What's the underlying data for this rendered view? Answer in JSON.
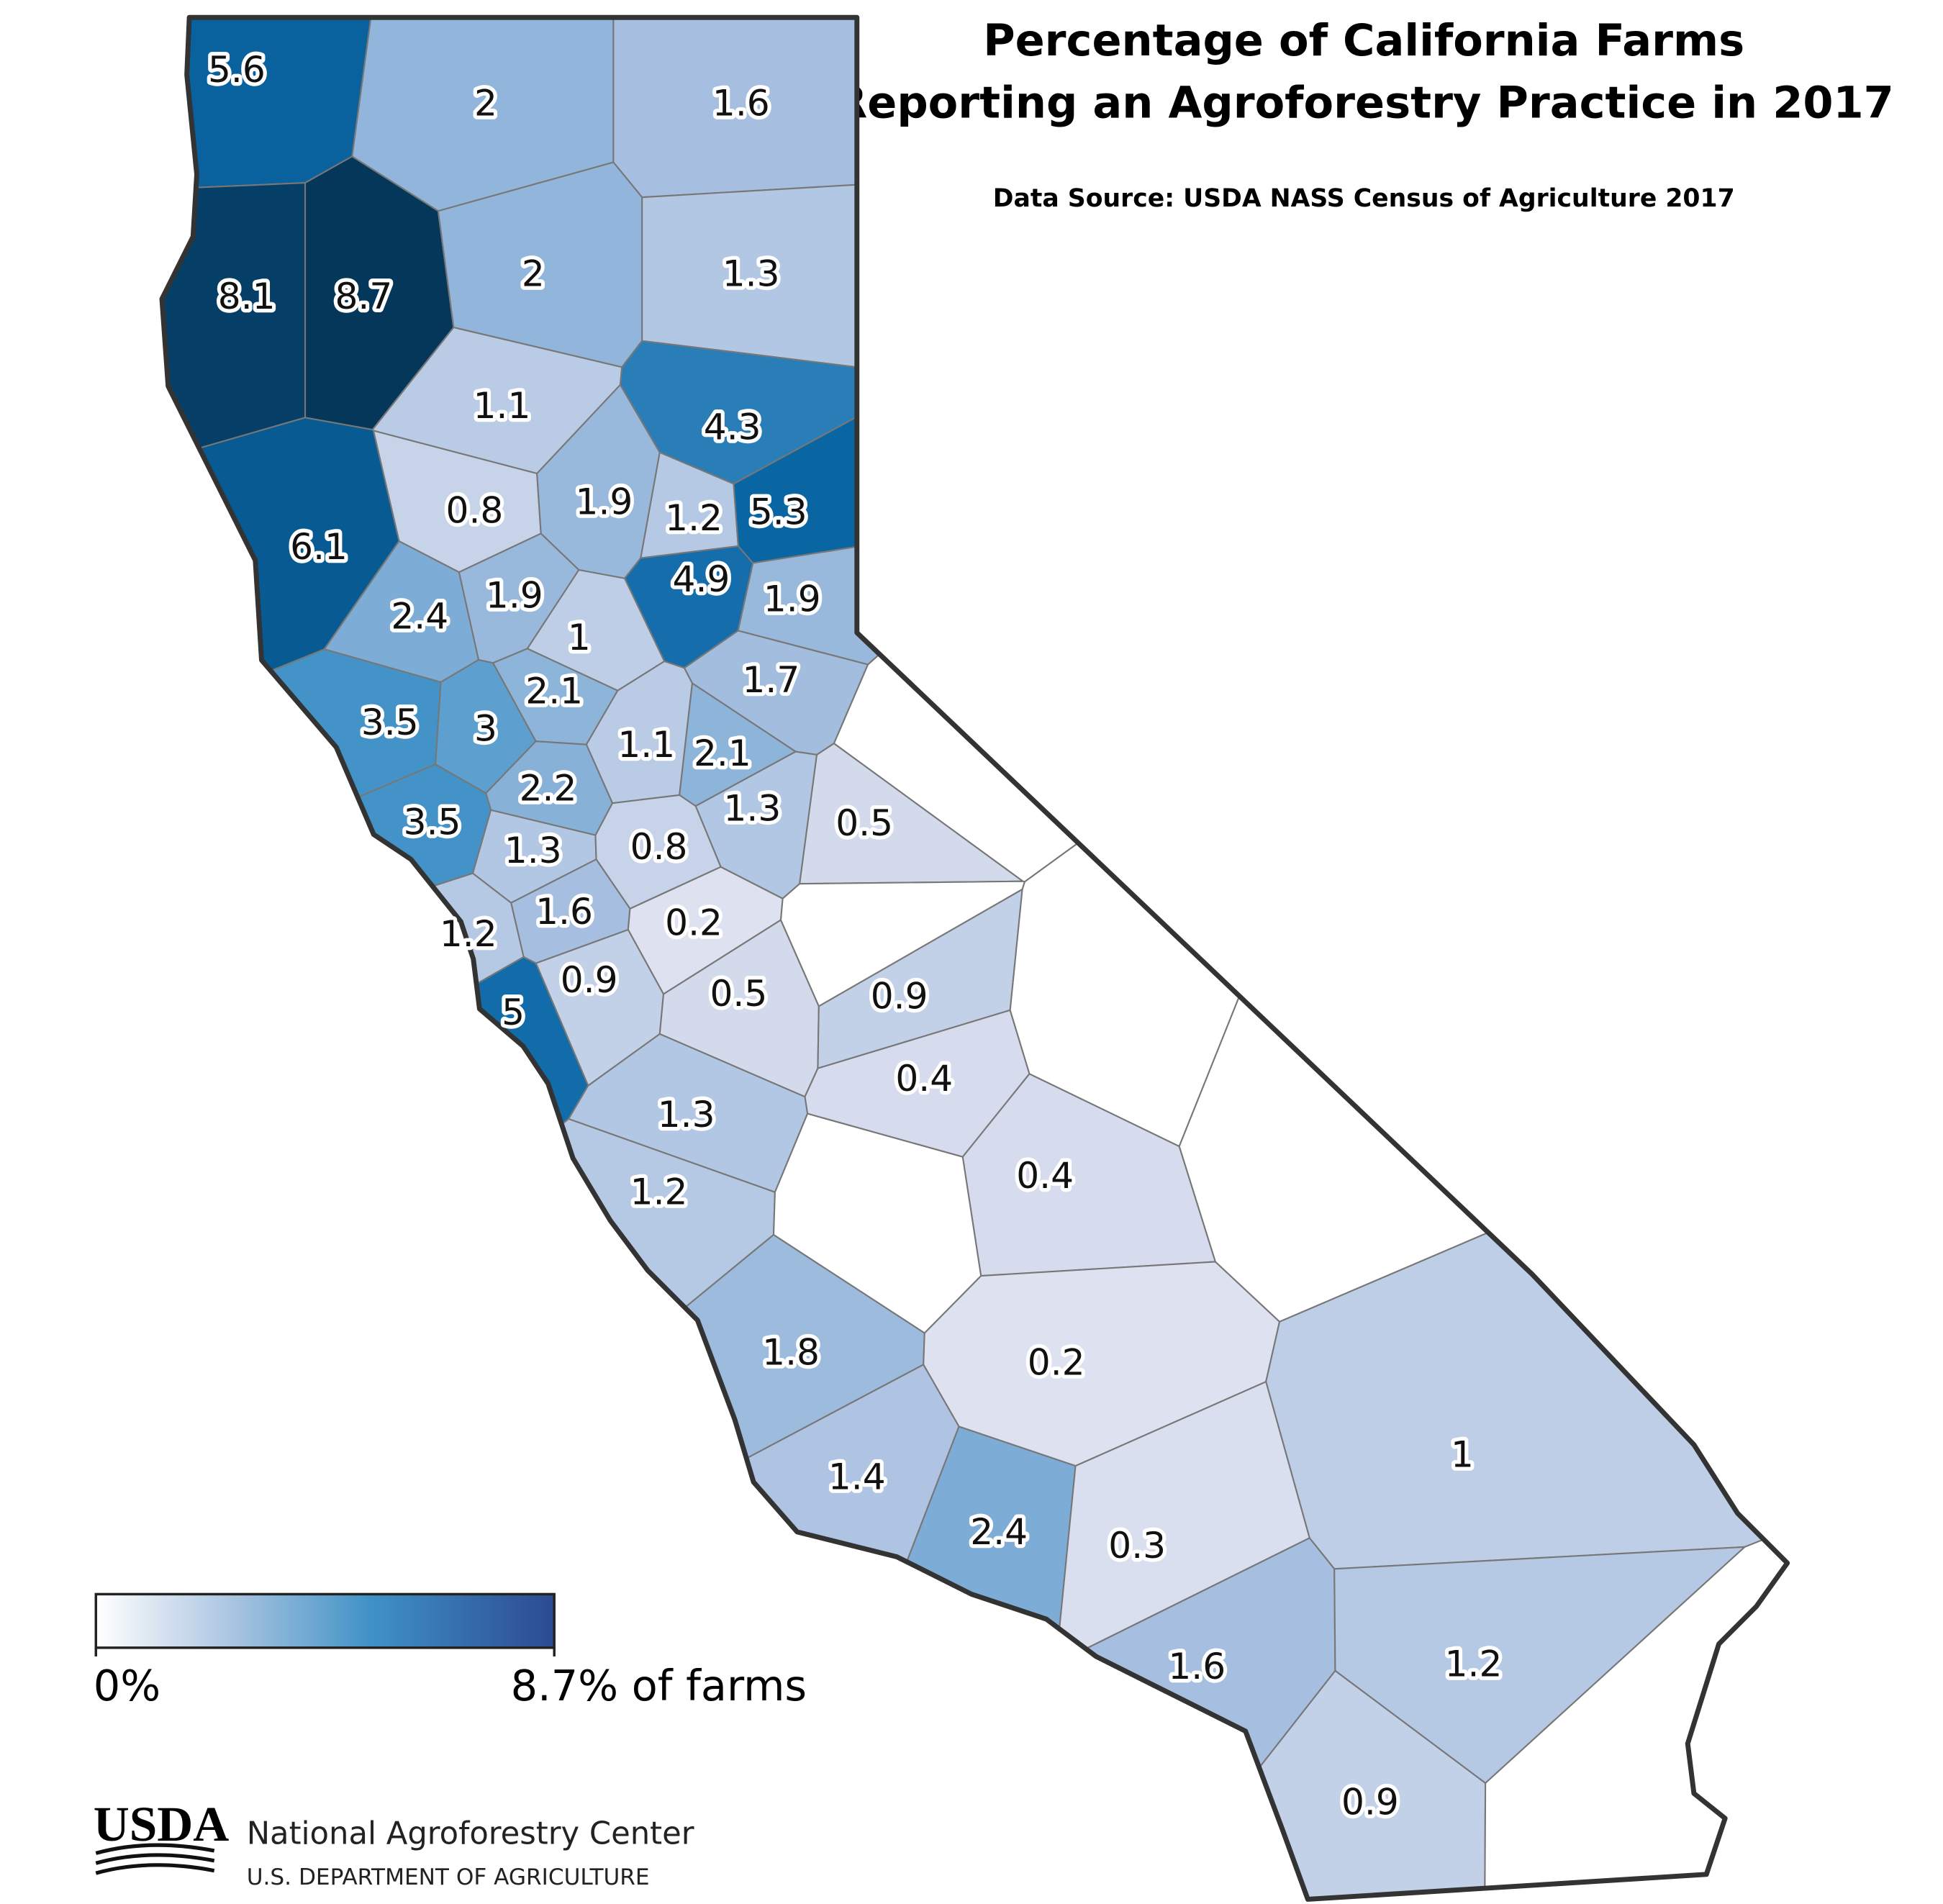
{
  "chart_data": {
    "type": "choropleth",
    "title": [
      "Percentage of California Farms",
      "Reporting an Agroforestry Practice in 2017"
    ],
    "subtitle": "Data Source: USDA NASS Census of Agriculture 2017",
    "values": [
      5.6,
      2,
      1.6,
      8.1,
      8.7,
      2,
      1.3,
      1.1,
      4.3,
      0.8,
      1.9,
      1.2,
      5.3,
      6.1,
      4.9,
      1.9,
      1.9,
      2.4,
      1,
      2.1,
      1.7,
      3.5,
      3,
      1.1,
      2.1,
      2.2,
      1.3,
      0.5,
      3.5,
      1.3,
      0.8,
      1.6,
      0.2,
      1.2,
      0.9,
      0.5,
      0.9,
      5,
      0.4,
      1.3,
      0.4,
      1.2,
      1.8,
      0.2,
      1,
      1.4,
      2.4,
      0.3,
      1.6,
      1.2,
      0.9
    ],
    "legend": {
      "min": {
        "value": 0,
        "label": "0%"
      },
      "max": {
        "value": 8.7,
        "label": "8.7% of farms"
      }
    }
  },
  "footer": {
    "logo": "USDA",
    "org": "National Agroforestry Center",
    "dept": "U.S. DEPARTMENT OF AGRICULTURE"
  }
}
